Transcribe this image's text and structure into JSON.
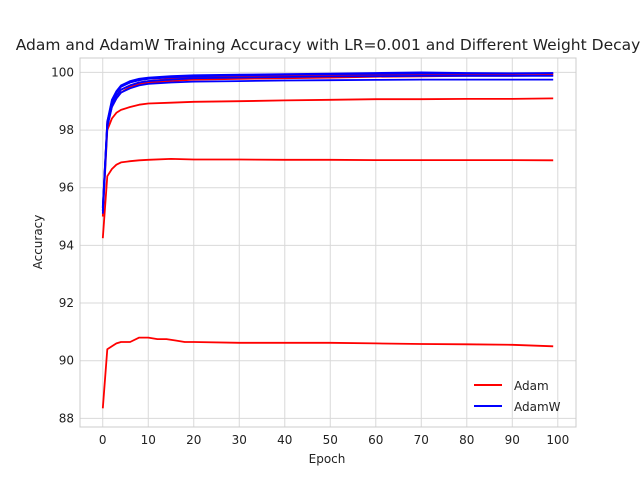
{
  "chart_data": {
    "type": "line",
    "title": "Adam and AdamW Training Accuracy with LR=0.001 and Different Weight Decay",
    "xlabel": "Epoch",
    "ylabel": "Accuracy",
    "xlim": [
      -5,
      104
    ],
    "ylim": [
      87.7,
      100.5
    ],
    "xticks": [
      0,
      10,
      20,
      30,
      40,
      50,
      60,
      70,
      80,
      90,
      100
    ],
    "yticks": [
      88,
      90,
      92,
      94,
      96,
      98,
      100
    ],
    "grid": true,
    "legend": {
      "position": "lower-right",
      "entries": [
        {
          "label": "Adam",
          "color": "#ff0000"
        },
        {
          "label": "AdamW",
          "color": "#0000ff"
        }
      ]
    },
    "series": [
      {
        "name": "Adam",
        "color": "#ff0000",
        "points": [
          [
            0,
            88.35
          ],
          [
            1,
            90.4
          ],
          [
            2,
            90.5
          ],
          [
            3,
            90.6
          ],
          [
            4,
            90.65
          ],
          [
            6,
            90.65
          ],
          [
            8,
            90.8
          ],
          [
            10,
            90.8
          ],
          [
            12,
            90.75
          ],
          [
            14,
            90.75
          ],
          [
            16,
            90.7
          ],
          [
            18,
            90.65
          ],
          [
            20,
            90.65
          ],
          [
            30,
            90.62
          ],
          [
            40,
            90.62
          ],
          [
            50,
            90.62
          ],
          [
            60,
            90.6
          ],
          [
            70,
            90.58
          ],
          [
            80,
            90.57
          ],
          [
            90,
            90.55
          ],
          [
            99,
            90.5
          ]
        ]
      },
      {
        "name": "Adam",
        "color": "#ff0000",
        "points": [
          [
            0,
            94.25
          ],
          [
            1,
            96.4
          ],
          [
            2,
            96.65
          ],
          [
            3,
            96.8
          ],
          [
            4,
            96.88
          ],
          [
            6,
            96.92
          ],
          [
            8,
            96.95
          ],
          [
            10,
            96.97
          ],
          [
            15,
            97.0
          ],
          [
            20,
            96.98
          ],
          [
            30,
            96.98
          ],
          [
            40,
            96.97
          ],
          [
            50,
            96.97
          ],
          [
            60,
            96.96
          ],
          [
            70,
            96.96
          ],
          [
            80,
            96.96
          ],
          [
            90,
            96.96
          ],
          [
            99,
            96.95
          ]
        ]
      },
      {
        "name": "Adam",
        "color": "#ff0000",
        "points": [
          [
            0,
            95.0
          ],
          [
            1,
            98.0
          ],
          [
            2,
            98.4
          ],
          [
            3,
            98.6
          ],
          [
            4,
            98.7
          ],
          [
            6,
            98.8
          ],
          [
            8,
            98.88
          ],
          [
            10,
            98.92
          ],
          [
            15,
            98.95
          ],
          [
            20,
            98.98
          ],
          [
            30,
            99.0
          ],
          [
            40,
            99.03
          ],
          [
            50,
            99.05
          ],
          [
            60,
            99.07
          ],
          [
            70,
            99.07
          ],
          [
            80,
            99.08
          ],
          [
            90,
            99.08
          ],
          [
            99,
            99.1
          ]
        ]
      },
      {
        "name": "Adam",
        "color": "#ff0000",
        "points": [
          [
            0,
            95.2
          ],
          [
            1,
            98.2
          ],
          [
            2,
            98.8
          ],
          [
            3,
            99.1
          ],
          [
            4,
            99.3
          ],
          [
            6,
            99.5
          ],
          [
            8,
            99.6
          ],
          [
            10,
            99.65
          ],
          [
            15,
            99.7
          ],
          [
            20,
            99.75
          ],
          [
            30,
            99.78
          ],
          [
            40,
            99.8
          ],
          [
            50,
            99.82
          ],
          [
            60,
            99.85
          ],
          [
            70,
            99.86
          ],
          [
            80,
            99.88
          ],
          [
            90,
            99.88
          ],
          [
            99,
            99.9
          ]
        ]
      },
      {
        "name": "Adam",
        "color": "#ff0000",
        "points": [
          [
            0,
            95.3
          ],
          [
            1,
            98.3
          ],
          [
            2,
            98.9
          ],
          [
            3,
            99.2
          ],
          [
            4,
            99.4
          ],
          [
            6,
            99.55
          ],
          [
            8,
            99.65
          ],
          [
            10,
            99.7
          ],
          [
            15,
            99.78
          ],
          [
            20,
            99.82
          ],
          [
            30,
            99.85
          ],
          [
            40,
            99.88
          ],
          [
            50,
            99.9
          ],
          [
            60,
            99.92
          ],
          [
            70,
            99.93
          ],
          [
            80,
            99.94
          ],
          [
            90,
            99.94
          ],
          [
            99,
            99.95
          ]
        ]
      },
      {
        "name": "AdamW",
        "color": "#0000ff",
        "points": [
          [
            0,
            95.1
          ],
          [
            1,
            98.1
          ],
          [
            2,
            98.8
          ],
          [
            3,
            99.1
          ],
          [
            4,
            99.3
          ],
          [
            6,
            99.45
          ],
          [
            8,
            99.55
          ],
          [
            10,
            99.6
          ],
          [
            15,
            99.65
          ],
          [
            20,
            99.68
          ],
          [
            30,
            99.7
          ],
          [
            40,
            99.72
          ],
          [
            50,
            99.73
          ],
          [
            60,
            99.74
          ],
          [
            70,
            99.75
          ],
          [
            80,
            99.75
          ],
          [
            90,
            99.75
          ],
          [
            99,
            99.75
          ]
        ]
      },
      {
        "name": "AdamW",
        "color": "#0000ff",
        "points": [
          [
            0,
            95.2
          ],
          [
            1,
            98.2
          ],
          [
            2,
            98.9
          ],
          [
            3,
            99.2
          ],
          [
            4,
            99.4
          ],
          [
            6,
            99.55
          ],
          [
            8,
            99.65
          ],
          [
            10,
            99.7
          ],
          [
            15,
            99.75
          ],
          [
            20,
            99.8
          ],
          [
            30,
            99.82
          ],
          [
            40,
            99.84
          ],
          [
            50,
            99.86
          ],
          [
            60,
            99.87
          ],
          [
            70,
            99.88
          ],
          [
            80,
            99.88
          ],
          [
            90,
            99.88
          ],
          [
            99,
            99.88
          ]
        ]
      },
      {
        "name": "AdamW",
        "color": "#0000ff",
        "points": [
          [
            0,
            95.3
          ],
          [
            1,
            98.25
          ],
          [
            2,
            99.0
          ],
          [
            3,
            99.3
          ],
          [
            4,
            99.5
          ],
          [
            6,
            99.65
          ],
          [
            8,
            99.73
          ],
          [
            10,
            99.78
          ],
          [
            15,
            99.83
          ],
          [
            20,
            99.86
          ],
          [
            30,
            99.9
          ],
          [
            40,
            99.92
          ],
          [
            50,
            99.94
          ],
          [
            60,
            99.95
          ],
          [
            70,
            99.96
          ],
          [
            80,
            99.96
          ],
          [
            90,
            99.96
          ],
          [
            99,
            99.97
          ]
        ]
      },
      {
        "name": "AdamW",
        "color": "#0000ff",
        "points": [
          [
            0,
            95.35
          ],
          [
            1,
            98.3
          ],
          [
            2,
            99.05
          ],
          [
            3,
            99.35
          ],
          [
            4,
            99.55
          ],
          [
            6,
            99.7
          ],
          [
            8,
            99.78
          ],
          [
            10,
            99.82
          ],
          [
            15,
            99.87
          ],
          [
            20,
            99.9
          ],
          [
            30,
            99.92
          ],
          [
            40,
            99.94
          ],
          [
            50,
            99.96
          ],
          [
            60,
            99.98
          ],
          [
            70,
            100.0
          ],
          [
            80,
            99.98
          ],
          [
            90,
            99.97
          ],
          [
            99,
            99.98
          ]
        ]
      }
    ]
  }
}
